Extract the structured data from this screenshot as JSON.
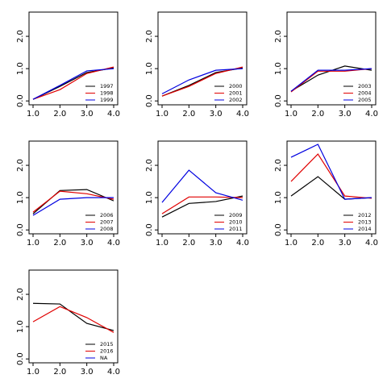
{
  "chart_data": [
    {
      "type": "line",
      "x": [
        1,
        2,
        3,
        4
      ],
      "xlim": [
        0.85,
        4.15
      ],
      "ylim": [
        -0.12,
        2.75
      ],
      "xticks": [
        {
          "value": 1,
          "label": "1.0"
        },
        {
          "value": 2,
          "label": "2.0"
        },
        {
          "value": 3,
          "label": "3.0"
        },
        {
          "value": 4,
          "label": "4.0"
        }
      ],
      "yticks": [
        {
          "value": 0,
          "label": "0.0"
        },
        {
          "value": 1,
          "label": "1.0"
        },
        {
          "value": 2,
          "label": "2.0"
        }
      ],
      "legend": "lower right",
      "series": [
        {
          "name": "1997",
          "color": "#000000",
          "values": [
            0.05,
            0.45,
            0.88,
            1.02
          ]
        },
        {
          "name": "1998",
          "color": "#e00000",
          "values": [
            0.05,
            0.35,
            0.85,
            1.05
          ]
        },
        {
          "name": "1999",
          "color": "#0000e0",
          "values": [
            0.05,
            0.48,
            0.93,
            1.0
          ]
        }
      ]
    },
    {
      "type": "line",
      "x": [
        1,
        2,
        3,
        4
      ],
      "xlim": [
        0.85,
        4.15
      ],
      "ylim": [
        -0.12,
        2.75
      ],
      "xticks": [
        {
          "value": 1,
          "label": "1.0"
        },
        {
          "value": 2,
          "label": "2.0"
        },
        {
          "value": 3,
          "label": "3.0"
        },
        {
          "value": 4,
          "label": "4.0"
        }
      ],
      "yticks": [
        {
          "value": 0,
          "label": "0.0"
        },
        {
          "value": 1,
          "label": "1.0"
        },
        {
          "value": 2,
          "label": "2.0"
        }
      ],
      "legend": "lower right",
      "series": [
        {
          "name": "2000",
          "color": "#000000",
          "values": [
            0.15,
            0.48,
            0.88,
            1.02
          ]
        },
        {
          "name": "2001",
          "color": "#e00000",
          "values": [
            0.15,
            0.45,
            0.85,
            1.05
          ]
        },
        {
          "name": "2002",
          "color": "#0000e0",
          "values": [
            0.22,
            0.65,
            0.95,
            1.0
          ]
        }
      ]
    },
    {
      "type": "line",
      "x": [
        1,
        2,
        3,
        4
      ],
      "xlim": [
        0.85,
        4.15
      ],
      "ylim": [
        -0.12,
        2.75
      ],
      "xticks": [
        {
          "value": 1,
          "label": "1.0"
        },
        {
          "value": 2,
          "label": "2.0"
        },
        {
          "value": 3,
          "label": "3.0"
        },
        {
          "value": 4,
          "label": "4.0"
        }
      ],
      "yticks": [
        {
          "value": 0,
          "label": "0.0"
        },
        {
          "value": 1,
          "label": "1.0"
        },
        {
          "value": 2,
          "label": "2.0"
        }
      ],
      "legend": "lower right",
      "series": [
        {
          "name": "2003",
          "color": "#000000",
          "values": [
            0.3,
            0.8,
            1.08,
            0.95
          ]
        },
        {
          "name": "2004",
          "color": "#e00000",
          "values": [
            0.28,
            0.92,
            0.92,
            1.0
          ]
        },
        {
          "name": "2005",
          "color": "#0000e0",
          "values": [
            0.3,
            0.95,
            0.95,
            1.0
          ]
        }
      ]
    },
    {
      "type": "line",
      "x": [
        1,
        2,
        3,
        4
      ],
      "xlim": [
        0.85,
        4.15
      ],
      "ylim": [
        -0.12,
        2.75
      ],
      "xticks": [
        {
          "value": 1,
          "label": "1.0"
        },
        {
          "value": 2,
          "label": "2.0"
        },
        {
          "value": 3,
          "label": "3.0"
        },
        {
          "value": 4,
          "label": "4.0"
        }
      ],
      "yticks": [
        {
          "value": 0,
          "label": "0.0"
        },
        {
          "value": 1,
          "label": "1.0"
        },
        {
          "value": 2,
          "label": "2.0"
        }
      ],
      "legend": "lower right",
      "series": [
        {
          "name": "2006",
          "color": "#000000",
          "values": [
            0.5,
            1.22,
            1.25,
            0.9
          ]
        },
        {
          "name": "2007",
          "color": "#e00000",
          "values": [
            0.55,
            1.2,
            1.12,
            0.95
          ]
        },
        {
          "name": "2008",
          "color": "#0000e0",
          "values": [
            0.45,
            0.95,
            1.0,
            1.0
          ]
        }
      ]
    },
    {
      "type": "line",
      "x": [
        1,
        2,
        3,
        4
      ],
      "xlim": [
        0.85,
        4.15
      ],
      "ylim": [
        -0.12,
        2.75
      ],
      "xticks": [
        {
          "value": 1,
          "label": "1.0"
        },
        {
          "value": 2,
          "label": "2.0"
        },
        {
          "value": 3,
          "label": "3.0"
        },
        {
          "value": 4,
          "label": "4.0"
        }
      ],
      "yticks": [
        {
          "value": 0,
          "label": "0.0"
        },
        {
          "value": 1,
          "label": "1.0"
        },
        {
          "value": 2,
          "label": "2.0"
        }
      ],
      "legend": "lower right",
      "series": [
        {
          "name": "2009",
          "color": "#000000",
          "values": [
            0.4,
            0.82,
            0.88,
            1.05
          ]
        },
        {
          "name": "2010",
          "color": "#e00000",
          "values": [
            0.5,
            1.02,
            1.02,
            1.0
          ]
        },
        {
          "name": "2011",
          "color": "#0000e0",
          "values": [
            0.85,
            1.85,
            1.15,
            0.92
          ]
        }
      ]
    },
    {
      "type": "line",
      "x": [
        1,
        2,
        3,
        4
      ],
      "xlim": [
        0.85,
        4.15
      ],
      "ylim": [
        -0.12,
        2.75
      ],
      "xticks": [
        {
          "value": 1,
          "label": "1.0"
        },
        {
          "value": 2,
          "label": "2.0"
        },
        {
          "value": 3,
          "label": "3.0"
        },
        {
          "value": 4,
          "label": "4.0"
        }
      ],
      "yticks": [
        {
          "value": 0,
          "label": "0.0"
        },
        {
          "value": 1,
          "label": "1.0"
        },
        {
          "value": 2,
          "label": "2.0"
        }
      ],
      "legend": "lower right",
      "series": [
        {
          "name": "2012",
          "color": "#000000",
          "values": [
            1.05,
            1.65,
            0.95,
            1.0
          ]
        },
        {
          "name": "2013",
          "color": "#e00000",
          "values": [
            1.5,
            2.35,
            1.05,
            0.98
          ]
        },
        {
          "name": "2014",
          "color": "#0000e0",
          "values": [
            2.25,
            2.65,
            0.95,
            1.0
          ]
        }
      ]
    },
    {
      "type": "line",
      "x": [
        1,
        2,
        3,
        4
      ],
      "xlim": [
        0.85,
        4.15
      ],
      "ylim": [
        -0.12,
        2.75
      ],
      "xticks": [
        {
          "value": 1,
          "label": "1.0"
        },
        {
          "value": 2,
          "label": "2.0"
        },
        {
          "value": 3,
          "label": "3.0"
        },
        {
          "value": 4,
          "label": "4.0"
        }
      ],
      "yticks": [
        {
          "value": 0,
          "label": "0.0"
        },
        {
          "value": 1,
          "label": "1.0"
        },
        {
          "value": 2,
          "label": "2.0"
        }
      ],
      "legend": "lower right",
      "series": [
        {
          "name": "2015",
          "color": "#000000",
          "values": [
            1.72,
            1.7,
            1.1,
            0.88
          ]
        },
        {
          "name": "2016",
          "color": "#e00000",
          "values": [
            1.15,
            1.62,
            1.28,
            0.82
          ]
        },
        {
          "name": "NA",
          "color": "#0000e0",
          "values": [
            null,
            null,
            null,
            null
          ]
        }
      ]
    }
  ]
}
